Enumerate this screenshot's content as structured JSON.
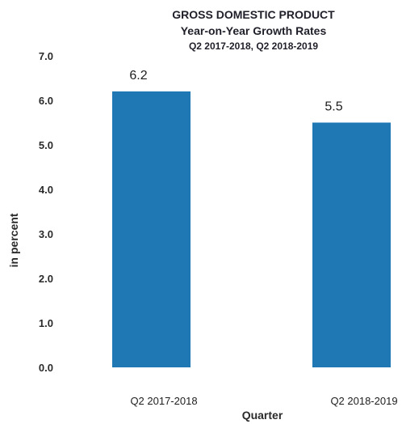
{
  "chart_data": {
    "type": "bar",
    "title": "GROSS DOMESTIC PRODUCT",
    "subtitle": "Year-on-Year Growth Rates",
    "subtitle2": "Q2 2017-2018, Q2 2018-2019",
    "xlabel": "Quarter",
    "ylabel": "in percent",
    "categories": [
      "Q2 2017-2018",
      "Q2 2018-2019"
    ],
    "values": [
      6.2,
      5.5
    ],
    "data_labels": [
      "6.2",
      "5.5"
    ],
    "ylim": [
      0,
      7
    ],
    "yticks": [
      "0.0",
      "1.0",
      "2.0",
      "3.0",
      "4.0",
      "5.0",
      "6.0",
      "7.0"
    ],
    "grid": false,
    "legend": "none",
    "bar_color": "#1f77b4"
  }
}
